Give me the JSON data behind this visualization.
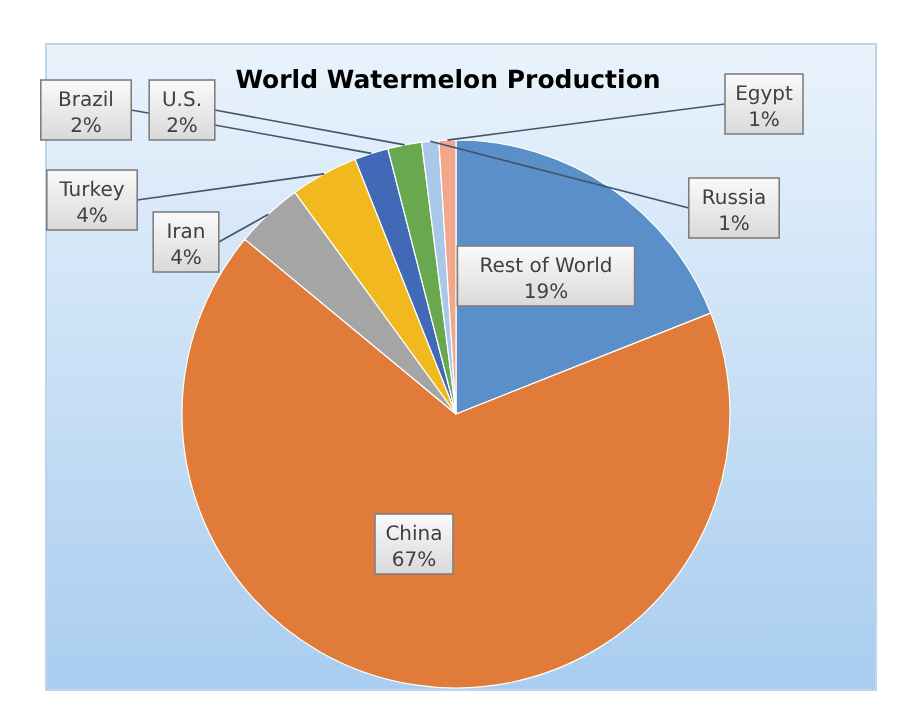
{
  "chart_data": {
    "type": "pie",
    "title": "World Watermelon Production",
    "categories": [
      "Rest of World",
      "China",
      "Iran",
      "Turkey",
      "Brazil",
      "U.S.",
      "Russia",
      "Egypt"
    ],
    "values": [
      19,
      67,
      4,
      4,
      2,
      2,
      1,
      1
    ],
    "colors": [
      "#5b8fc9",
      "#e07b39",
      "#a5a5a5",
      "#f2b91f",
      "#4169b8",
      "#6aa84f",
      "#a9c8e8",
      "#f2a68a"
    ],
    "value_labels": [
      "19%",
      "67%",
      "4%",
      "4%",
      "2%",
      "2%",
      "1%",
      "1%"
    ]
  }
}
